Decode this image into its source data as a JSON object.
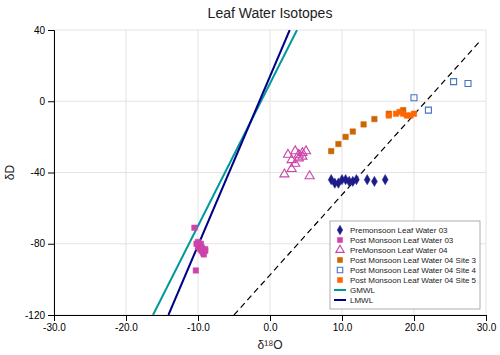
{
  "chart_data": {
    "type": "scatter",
    "title": "Leaf Water Isotopes",
    "xlabel": "δ¹⁸O",
    "ylabel": "δD",
    "xlim": [
      -30.0,
      30.0
    ],
    "ylim": [
      -120,
      40
    ],
    "xticks": [
      {
        "value": -30,
        "label": "-30.0"
      },
      {
        "value": -20,
        "label": "-20.0"
      },
      {
        "value": -10,
        "label": "-10.0"
      },
      {
        "value": 0,
        "label": "0.0"
      },
      {
        "value": 10,
        "label": "10.0"
      },
      {
        "value": 20,
        "label": "20.0"
      },
      {
        "value": 30,
        "label": "30.0"
      }
    ],
    "yticks": [
      -120,
      -80,
      -40,
      0,
      40
    ],
    "grid": true,
    "legend": "lower right",
    "series": [
      {
        "name": "Premonsoon Leaf Water 03",
        "type": "scatter",
        "color": "#1B1B8A",
        "marker": "diamond",
        "x": [
          8.5,
          9.0,
          9.5,
          10.0,
          10.5,
          11.0,
          11.5,
          12.0,
          13.5,
          14.5,
          16.0
        ],
        "values": [
          -44,
          -46,
          -46,
          -44,
          -44,
          -45,
          -45,
          -44,
          -44,
          -45,
          -44
        ]
      },
      {
        "name": "Post Monsoon Leaf Water 03",
        "type": "scatter",
        "color": "#CC44AA",
        "marker": "square",
        "x": [
          -10.5,
          -10.2,
          -10.0,
          -10.0,
          -9.8,
          -9.7,
          -9.6,
          -9.5,
          -9.5,
          -9.4,
          -9.3,
          -9.2,
          -9.0,
          -9.0,
          -10.3
        ],
        "values": [
          -71,
          -80,
          -79,
          -82,
          -81,
          -83,
          -80,
          -82,
          -84,
          -83,
          -85,
          -86,
          -84,
          -83,
          -95
        ]
      },
      {
        "name": "PreMonsoon Leaf Water 04",
        "type": "scatter",
        "color": "#CC44AA",
        "marker": "triangle-open",
        "x": [
          2.0,
          2.5,
          3.0,
          3.5,
          4.0,
          4.5,
          5.0,
          3.0,
          3.5,
          4.0,
          4.5,
          5.5
        ],
        "values": [
          -41,
          -30,
          -33,
          -28,
          -30,
          -31,
          -28,
          -38,
          -35,
          -32,
          -29,
          -42
        ]
      },
      {
        "name": "Post Monsoon Leaf Water 04 Site 3",
        "type": "scatter",
        "color": "#CC6600",
        "marker": "square",
        "x": [
          8.5,
          9.5,
          10.5,
          11.5,
          13.0,
          14.5,
          16.5,
          18.5
        ],
        "values": [
          -28,
          -24,
          -20,
          -17,
          -13,
          -10,
          -7,
          -5
        ]
      },
      {
        "name": "Post Monsoon Leaf Water 04 Site 4",
        "type": "scatter",
        "color": "#4472C4",
        "marker": "square-open",
        "x": [
          20.0,
          22.0,
          25.5,
          27.5
        ],
        "values": [
          2,
          -5,
          11,
          10
        ]
      },
      {
        "name": "Post Monsoon Leaf Water 04 Site 5",
        "type": "scatter",
        "color": "#FF6600",
        "marker": "square",
        "x": [
          16.5,
          17.5,
          18.0,
          18.5,
          19.0,
          19.5,
          20.0
        ],
        "values": [
          -8,
          -7,
          -6,
          -7,
          -8,
          -8,
          -7
        ]
      },
      {
        "name": "GMWL",
        "type": "line",
        "color": "#009999",
        "x": [
          -16.25,
          3.75
        ],
        "values": [
          -120,
          40
        ]
      },
      {
        "name": "LMWL",
        "type": "line",
        "color": "#00008B",
        "x": [
          -14.105263157894736,
          2.736842105263158
        ],
        "values": [
          -120,
          40
        ]
      },
      {
        "type": "line",
        "color": "black",
        "line_style": "dashed",
        "x": [
          -5,
          29
        ],
        "values": [
          -120,
          33
        ]
      }
    ]
  }
}
